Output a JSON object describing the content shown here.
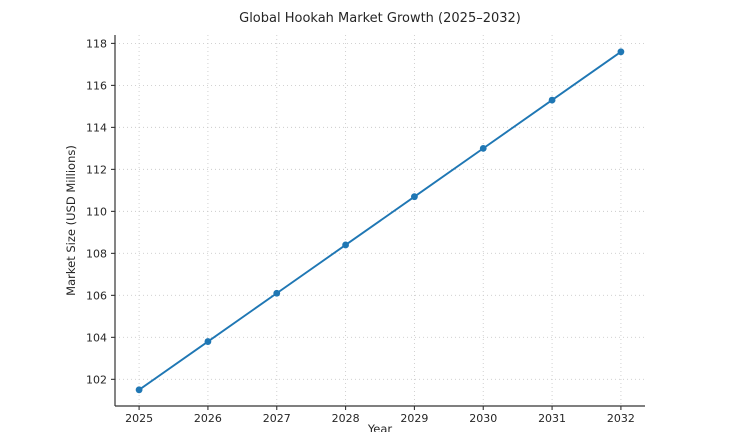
{
  "chart_data": {
    "type": "line",
    "title": "Global Hookah Market Growth (2025–2032)",
    "xlabel": "Year",
    "ylabel": "Market Size (USD Millions)",
    "x": [
      2025,
      2026,
      2027,
      2028,
      2029,
      2030,
      2031,
      2032
    ],
    "categories": [
      "2025",
      "2026",
      "2027",
      "2028",
      "2029",
      "2030",
      "2031",
      "2032"
    ],
    "series": [
      {
        "name": "Market Size (USD Millions)",
        "values": [
          101.5,
          103.8,
          106.1,
          108.4,
          110.7,
          113.0,
          115.3,
          117.6
        ]
      }
    ],
    "yticks": [
      102,
      104,
      106,
      108,
      110,
      112,
      114,
      116,
      118
    ],
    "xlim": [
      2024.65,
      2032.35
    ],
    "ylim": [
      100.73,
      118.4
    ],
    "grid": true,
    "grid_style": "dotted",
    "legend": false,
    "colors": {
      "line": "#1f77b4",
      "marker": "#1f77b4",
      "grid": "#cccccc",
      "spine": "#333333",
      "tick": "#333333",
      "text": "#262626",
      "background": "#ffffff"
    }
  }
}
